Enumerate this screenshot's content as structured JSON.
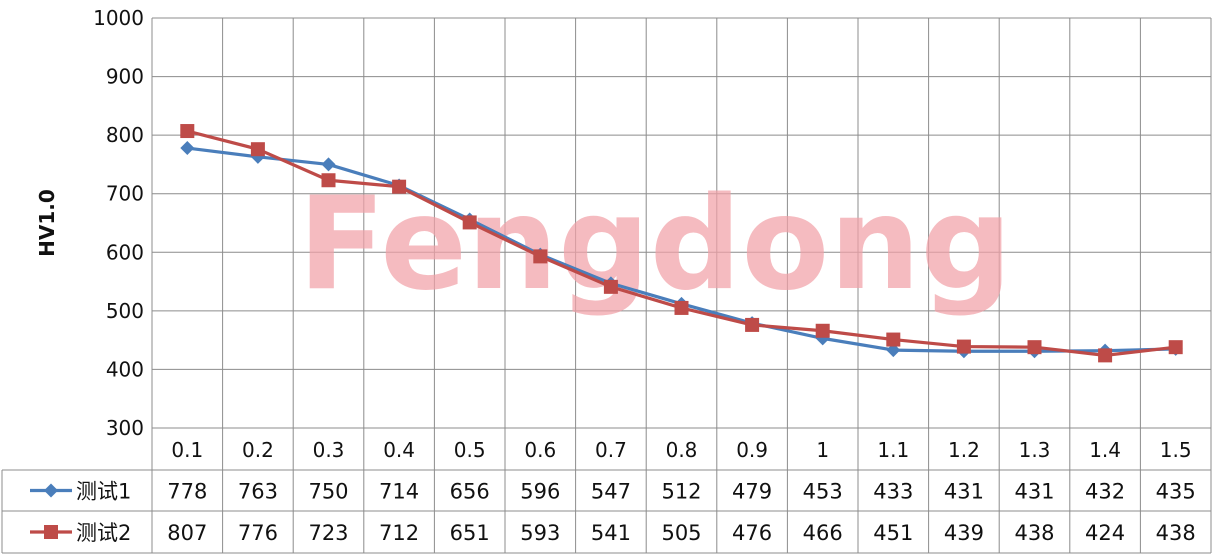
{
  "watermark": "Fengdong",
  "chart_data": {
    "type": "line",
    "ylabel": "HV1.0",
    "ylim": [
      300,
      1000
    ],
    "yticks": [
      300,
      400,
      500,
      600,
      700,
      800,
      900,
      1000
    ],
    "grid": true,
    "legend": "data-table",
    "categories": [
      "0.1",
      "0.2",
      "0.3",
      "0.4",
      "0.5",
      "0.6",
      "0.7",
      "0.8",
      "0.9",
      "1",
      "1.1",
      "1.2",
      "1.3",
      "1.4",
      "1.5"
    ],
    "series": [
      {
        "name": "测试1",
        "color": "#4a7ebb",
        "marker": "diamond",
        "values": [
          778,
          763,
          750,
          714,
          656,
          596,
          547,
          512,
          479,
          453,
          433,
          431,
          431,
          432,
          435
        ]
      },
      {
        "name": "测试2",
        "color": "#be4b48",
        "marker": "square",
        "values": [
          807,
          776,
          723,
          712,
          651,
          593,
          541,
          505,
          476,
          466,
          451,
          439,
          438,
          424,
          438
        ]
      }
    ]
  }
}
